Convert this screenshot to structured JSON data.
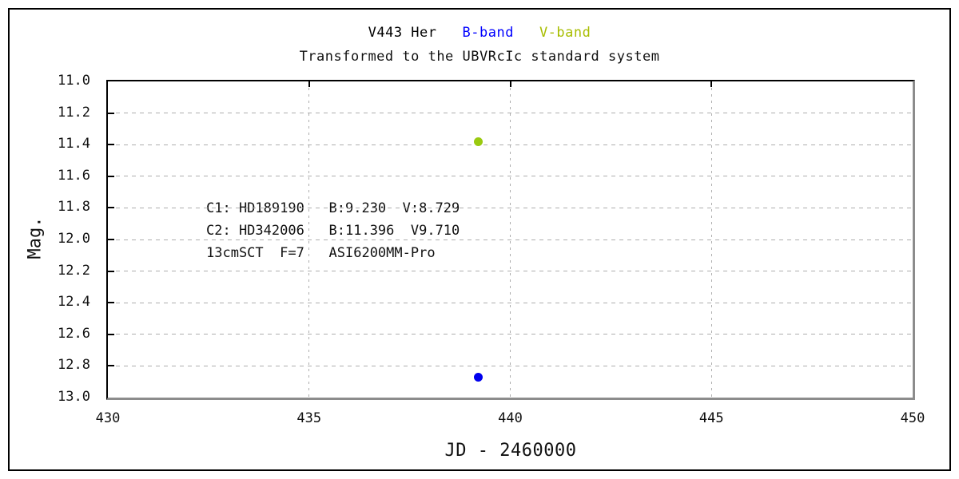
{
  "chart_data": {
    "type": "scatter",
    "title_segments": [
      {
        "text": "V443 Her",
        "color": "#000000"
      },
      {
        "text": "B-band",
        "color": "#0000ff"
      },
      {
        "text": "V-band",
        "color": "#a8bd00"
      }
    ],
    "subtitle": "Transformed to the UBVRcIc standard system",
    "xlabel": "JD - 2460000",
    "ylabel": "Mag.",
    "xlim": [
      430,
      450
    ],
    "ylim": [
      11.0,
      13.0
    ],
    "y_axis_inverted": true,
    "x_ticks": [
      {
        "value": 430,
        "label": "430"
      },
      {
        "value": 435,
        "label": "435"
      },
      {
        "value": 440,
        "label": "440"
      },
      {
        "value": 445,
        "label": "445"
      },
      {
        "value": 450,
        "label": "450"
      }
    ],
    "y_ticks": [
      {
        "value": 11.0,
        "label": "11.0"
      },
      {
        "value": 11.2,
        "label": "11.2"
      },
      {
        "value": 11.4,
        "label": "11.4"
      },
      {
        "value": 11.6,
        "label": "11.6"
      },
      {
        "value": 11.8,
        "label": "11.8"
      },
      {
        "value": 12.0,
        "label": "12.0"
      },
      {
        "value": 12.2,
        "label": "12.2"
      },
      {
        "value": 12.4,
        "label": "12.4"
      },
      {
        "value": 12.6,
        "label": "12.6"
      },
      {
        "value": 12.8,
        "label": "12.8"
      },
      {
        "value": 13.0,
        "label": "13.0"
      }
    ],
    "x_gridlines": [
      435,
      440,
      445
    ],
    "y_gridlines": [
      11.2,
      11.4,
      11.6,
      11.8,
      12.0,
      12.2,
      12.4,
      12.6,
      12.8
    ],
    "grid_color": "#adadad",
    "axis_color": "#000000",
    "frame_shadow_color": "#8c8c8c",
    "series": [
      {
        "name": "B-band",
        "color": "#0000ee",
        "points": [
          {
            "x": 439.2,
            "y": 12.87
          }
        ]
      },
      {
        "name": "V-band",
        "color": "#9aca10",
        "points": [
          {
            "x": 439.2,
            "y": 11.38
          }
        ]
      }
    ],
    "annotation_lines": [
      "C1: HD189190   B:9.230  V:8.729",
      "C2: HD342006   B:11.396  V9.710",
      "13cmSCT  F=7   ASI6200MM-Pro"
    ],
    "legend_position": "top-title",
    "grid": true
  }
}
